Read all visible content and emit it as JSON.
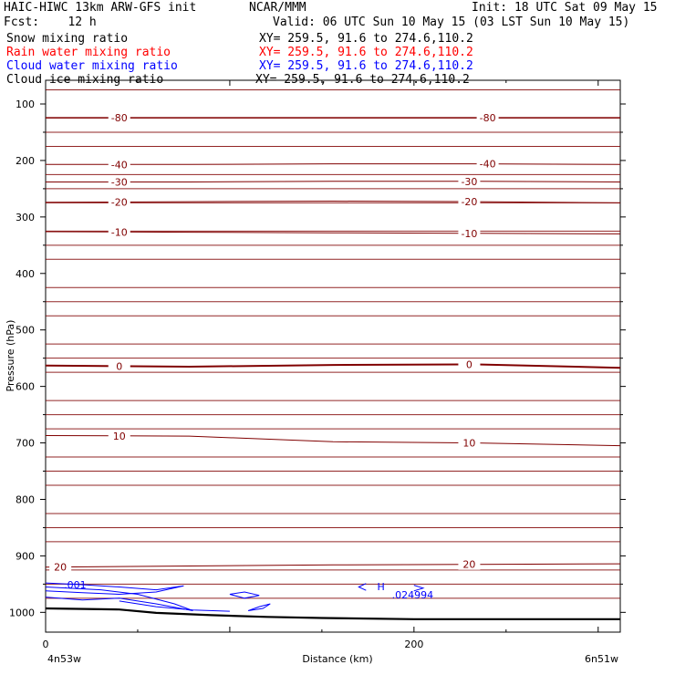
{
  "header": {
    "model": "HAIC-HIWC 13km ARW-GFS init",
    "org": "NCAR/MMM",
    "init": "Init: 18 UTC Sat 09 May 15",
    "fcst": "Fcst:    12 h",
    "valid": "Valid: 06 UTC Sun 10 May 15 (03 LST Sun 10 May 15)"
  },
  "fields": [
    {
      "name": "Snow mixing ratio",
      "xy": "XY= 259.5, 91.6 to 274.6,110.2",
      "color": "#000000"
    },
    {
      "name": "Rain water mixing ratio",
      "xy": "XY= 259.5, 91.6 to 274.6,110.2",
      "color": "#ff0000"
    },
    {
      "name": "Cloud water mixing ratio",
      "xy": "XY= 259.5, 91.6 to 274.6,110.2",
      "color": "#0000ff"
    },
    {
      "name": "Cloud ice mixing ratio",
      "xy": "XY= 259.5, 91.6 to 274.6,110.2",
      "color": "#000000"
    }
  ],
  "chart_data": {
    "type": "line",
    "ylabel": "Pressure (hPa)",
    "xlabel": "Distance (km)",
    "x_ticks": [
      0,
      200
    ],
    "y_ticks": [
      100,
      200,
      300,
      400,
      500,
      600,
      700,
      800,
      900,
      1000
    ],
    "xlim": [
      0,
      312
    ],
    "ylim": [
      1035,
      58
    ],
    "y_reversed": true,
    "left_endpoint": "4n53w",
    "right_endpoint": "6n51w",
    "isotherm_color": "#800000",
    "cloud_color": "#0000ff",
    "isotherm_series": [
      {
        "label": "-80",
        "pressures": [
          124,
          124,
          124,
          124,
          124
        ],
        "label_x": [
          40,
          240
        ]
      },
      {
        "label": "-40",
        "pressures": [
          207,
          207,
          206,
          206,
          207
        ],
        "label_x": [
          40,
          240
        ]
      },
      {
        "label": "-30",
        "pressures": [
          238,
          238,
          237,
          237,
          238
        ],
        "label_x": [
          40,
          230
        ]
      },
      {
        "label": "-20",
        "pressures": [
          274,
          273,
          272,
          273,
          275
        ],
        "label_x": [
          40,
          230
        ]
      },
      {
        "label": "-10",
        "pressures": [
          326,
          327,
          328,
          329,
          330
        ],
        "label_x": [
          40,
          230
        ]
      },
      {
        "label": "0",
        "pressures": [
          563,
          565,
          562,
          561,
          567
        ],
        "label_x": [
          40,
          230
        ]
      },
      {
        "label": "10",
        "pressures": [
          687,
          688,
          698,
          700,
          705
        ],
        "label_x": [
          40,
          230
        ]
      },
      {
        "label": "20",
        "pressures": [
          920,
          918,
          916,
          915,
          914
        ],
        "label_x": [
          8,
          230
        ]
      }
    ],
    "cloud_water_labels": [
      {
        "text": ".001",
        "x": 10,
        "p": 951
      },
      {
        "text": "H",
        "x": 180,
        "p": 954
      },
      {
        "text": ".024994",
        "x": 188,
        "p": 969
      }
    ],
    "terrain": {
      "x": [
        0,
        40,
        60,
        90,
        120,
        150,
        200,
        250,
        312
      ],
      "p": [
        993,
        995,
        1001,
        1005,
        1008,
        1010,
        1012,
        1012,
        1012
      ]
    }
  }
}
